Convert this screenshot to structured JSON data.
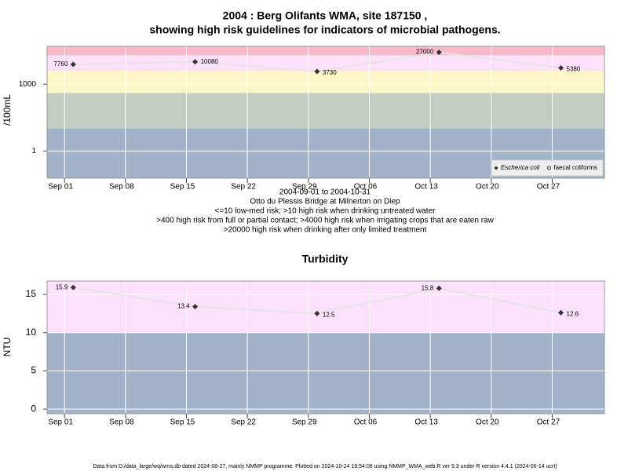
{
  "chart_data": [
    {
      "type": "line",
      "title": "2004 : Berg Olifants WMA, site 187150 ,",
      "subtitle": "showing high risk guidelines for indicators of microbial pathogens.",
      "y_label": "/100mL",
      "log_scale": true,
      "notes": [
        "2004-09-01 to 2004-10-31",
        "Otto du Plessis Bridge at Milnerton on Diep",
        "<=10 low-med risk; >10 high risk when drinking untreated water",
        ">400 high risk from full or partial contact; >4000 high risk when irrigating crops that are eaten raw",
        ">20000 high risk when drinking after only limited treatment"
      ],
      "x": [
        "2004-09-02",
        "2004-09-16",
        "2004-09-30",
        "2004-10-14",
        "2004-10-28"
      ],
      "xlim": [
        "2004-08-30",
        "2004-11-02"
      ],
      "xticks": [
        {
          "value": "2004-09-01",
          "label": "Sep 01"
        },
        {
          "value": "2004-09-08",
          "label": "Sep 08"
        },
        {
          "value": "2004-09-15",
          "label": "Sep 15"
        },
        {
          "value": "2004-09-22",
          "label": "Sep 22"
        },
        {
          "value": "2004-09-29",
          "label": "Sep 29"
        },
        {
          "value": "2004-10-06",
          "label": "Oct 06"
        },
        {
          "value": "2004-10-13",
          "label": "Oct 13"
        },
        {
          "value": "2004-10-20",
          "label": "Oct 20"
        },
        {
          "value": "2004-10-27",
          "label": "Oct 27"
        }
      ],
      "ylim": [
        0.06,
        50000
      ],
      "yticks": [
        1,
        1000
      ],
      "grid": true,
      "thresholds": [
        10,
        400,
        4000,
        20000
      ],
      "band_colors": [
        "#a2b3c9",
        "#c4cdc2",
        "#fdf6c7",
        "#fde0fb",
        "#f7b8c8"
      ],
      "legend": "bottom-right",
      "series": [
        {
          "name": "Escherica coli",
          "marker": "diamond",
          "color": "#333333",
          "line_color": "#e4e4e4",
          "values": [
            7760,
            10080,
            3730,
            27000,
            5380
          ]
        },
        {
          "name": "faecal coliforms",
          "marker": "circle",
          "color": "#333333",
          "line_color": "#e4e4e4",
          "values": [
            null,
            null,
            null,
            null,
            null
          ]
        }
      ]
    },
    {
      "type": "line",
      "title": "Turbidity",
      "y_label": "NTU",
      "log_scale": false,
      "x": [
        "2004-09-02",
        "2004-09-16",
        "2004-09-30",
        "2004-10-14",
        "2004-10-28"
      ],
      "xlim": [
        "2004-08-30",
        "2004-11-02"
      ],
      "xticks": [
        {
          "value": "2004-09-01",
          "label": "Sep 01"
        },
        {
          "value": "2004-09-08",
          "label": "Sep 08"
        },
        {
          "value": "2004-09-15",
          "label": "Sep 15"
        },
        {
          "value": "2004-09-22",
          "label": "Sep 22"
        },
        {
          "value": "2004-09-29",
          "label": "Sep 29"
        },
        {
          "value": "2004-10-06",
          "label": "Oct 06"
        },
        {
          "value": "2004-10-13",
          "label": "Oct 13"
        },
        {
          "value": "2004-10-20",
          "label": "Oct 20"
        },
        {
          "value": "2004-10-27",
          "label": "Oct 27"
        }
      ],
      "ylim": [
        -0.6,
        16.75
      ],
      "yticks": [
        0,
        5,
        10,
        15
      ],
      "grid": true,
      "thresholds": [
        10
      ],
      "band_colors": [
        "#a2b3c9",
        "#fde0fb"
      ],
      "series": [
        {
          "name": "Turbidity",
          "marker": "diamond",
          "color": "#333333",
          "line_color": "#e4e4e4",
          "values": [
            15.9,
            13.4,
            12.5,
            15.8,
            12.6
          ]
        }
      ]
    }
  ],
  "footer": "Data from D:/data_large/wq/wms.db dated 2024-08-27, mainly NMMP programme. Plotted on 2024-10-24 19:54:08 using NMMP_WMA_web.R ver 9.3 under R version 4.4.1 (2024-06-14 ucrt)"
}
